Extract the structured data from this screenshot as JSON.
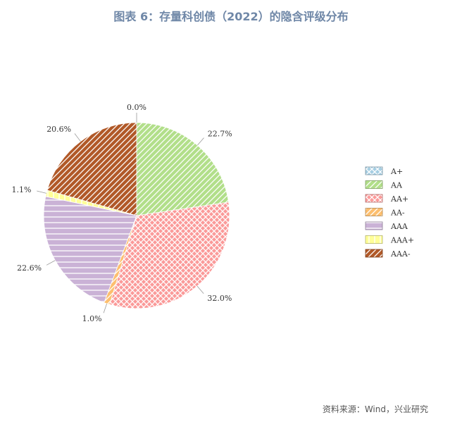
{
  "title": "图表 6：存量科创债（2022）的隐含评级分布",
  "source": "资料来源：Wind，兴业研究",
  "chart_data": {
    "type": "pie",
    "title": "图表 6：存量科创债（2022）的隐含评级分布",
    "legend_position": "right",
    "slices": [
      {
        "name": "A+",
        "value": 0.0,
        "label": "0.0%",
        "color": "#a6cee3",
        "hatch": "cross-diagonal"
      },
      {
        "name": "AA",
        "value": 22.7,
        "label": "22.7%",
        "color": "#b2df8a",
        "hatch": "diagonal"
      },
      {
        "name": "AA+",
        "value": 32.0,
        "label": "32.0%",
        "color": "#fb9a99",
        "hatch": "crosshatch"
      },
      {
        "name": "AA-",
        "value": 1.0,
        "label": "1.0%",
        "color": "#fdbf6f",
        "hatch": "diagonal"
      },
      {
        "name": "AAA",
        "value": 22.6,
        "label": "22.6%",
        "color": "#cab2d6",
        "hatch": "horizontal"
      },
      {
        "name": "AAA+",
        "value": 1.1,
        "label": "1.1%",
        "color": "#ffff99",
        "hatch": "vertical"
      },
      {
        "name": "AAA-",
        "value": 20.6,
        "label": "20.6%",
        "color": "#b15928",
        "hatch": "diagonal"
      }
    ]
  }
}
